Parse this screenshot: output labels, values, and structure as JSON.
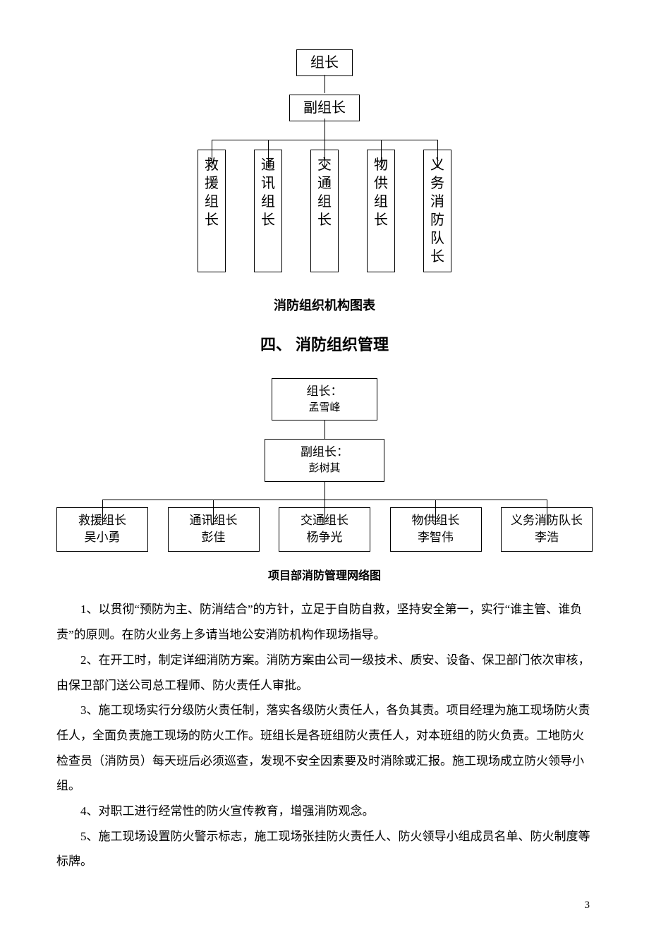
{
  "chart1": {
    "top": "组长",
    "mid": "副组长",
    "subs": [
      "救援组长",
      "通讯组长",
      "交通组长",
      "物供组长",
      "义务消防队长"
    ],
    "caption": "消防组织机构图表"
  },
  "heading": "四、 消防组织管理",
  "chart2": {
    "top": {
      "title": "组长：",
      "name": "孟雪峰"
    },
    "mid": {
      "title": "副组长：",
      "name": "彭树其"
    },
    "subs": [
      {
        "title": "救援组长",
        "name": "吴小勇"
      },
      {
        "title": "通讯组长",
        "name": "彭佳"
      },
      {
        "title": "交通组长",
        "name": "杨争光"
      },
      {
        "title": "物供组长",
        "name": "李智伟"
      },
      {
        "title": "义务消防队长",
        "name": "李浩"
      }
    ],
    "caption": "项目部消防管理网络图"
  },
  "paragraphs": [
    "1、以贯彻“预防为主、防消结合”的方针，立足于自防自救，坚持安全第一，实行“谁主管、谁负责”的原则。在防火业务上多请当地公安消防机构作现场指导。",
    "2、在开工时，制定详细消防方案。消防方案由公司一级技术、质安、设备、保卫部门依次审核，由保卫部门送公司总工程师、防火责任人审批。",
    "3、施工现场实行分级防火责任制，落实各级防火责任人，各负其责。项目经理为施工现场防火责任人，全面负责施工现场的防火工作。班组长是各班组防火责任人，对本班组的防火负责。工地防火检查员（消防员）每天班后必须巡查，发现不安全因素要及时消除或汇报。施工现场成立防火领导小组。",
    "4、对职工进行经常性的防火宣传教育，增强消防观念。",
    "5、施工现场设置防火警示标志，施工现场张挂防火责任人、防火领导小组成员名单、防火制度等标牌。"
  ],
  "pageNumber": "3"
}
